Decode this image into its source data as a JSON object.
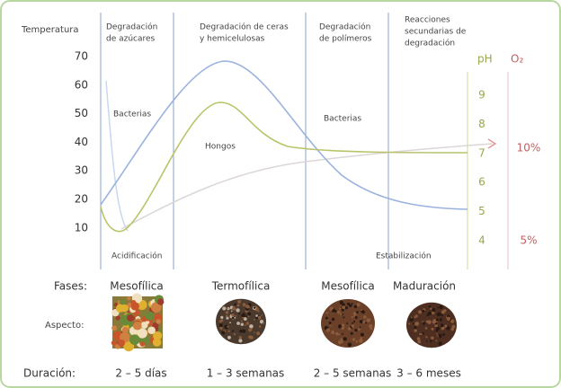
{
  "left_axis": {
    "label": "Temperatura",
    "ticks": [
      "70",
      "60",
      "50",
      "40",
      "30",
      "20",
      "10"
    ]
  },
  "right_axes": {
    "ph_label": "pH",
    "ph_ticks": [
      "9",
      "8",
      "7",
      "6",
      "5",
      "4"
    ],
    "o2_label": "O₂",
    "o2_ticks": [
      "10%",
      "5%"
    ]
  },
  "stages": [
    {
      "lines": [
        "Degradación",
        "de azúcares"
      ]
    },
    {
      "lines": [
        "Degradación de ceras",
        "y hemicelulosas"
      ]
    },
    {
      "lines": [
        "Degradación",
        "de polímeros"
      ]
    },
    {
      "lines": [
        "Reacciones",
        "secundarias de",
        "degradación"
      ]
    }
  ],
  "annotations": [
    "Bacterias",
    "Hongos",
    "Bacterias",
    "Acidificación",
    "Estabilización"
  ],
  "rows": {
    "phases": {
      "label": "Fases:",
      "items": [
        "Mesofílica",
        "Termofílica",
        "Mesofílica",
        "Maduración"
      ]
    },
    "aspect": {
      "label": "Aspecto:"
    },
    "duration": {
      "label": "Duración:",
      "items": [
        "2 – 5 días",
        "1 – 3 semanas",
        "2 – 5 semanas",
        "3 – 6 meses"
      ]
    }
  }
}
